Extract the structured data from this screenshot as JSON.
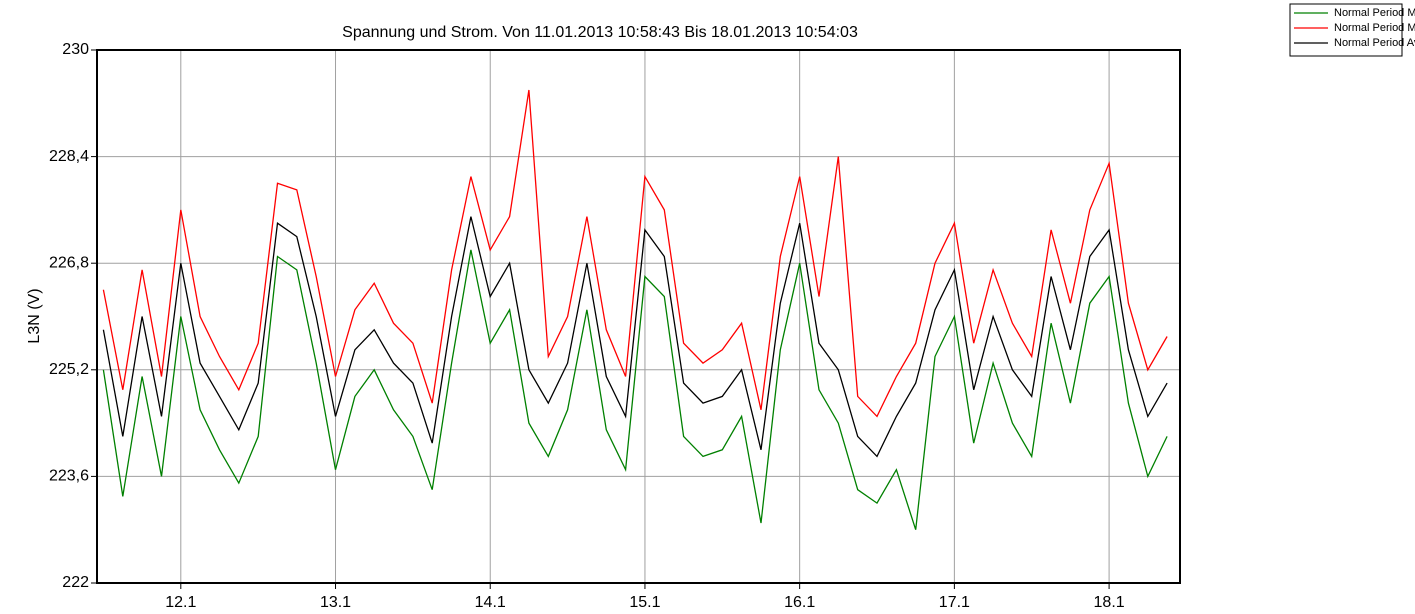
{
  "chart_data": {
    "type": "line",
    "title": "Spannung und Strom. Von 11.01.2013 10:58:43 Bis 18.01.2013 10:54:03",
    "y_label": "L3N (V)",
    "categories": [
      null,
      null,
      null,
      null,
      "12.1",
      null,
      null,
      null,
      null,
      null,
      null,
      null,
      "13.1",
      null,
      null,
      null,
      null,
      null,
      null,
      null,
      "14.1",
      null,
      null,
      null,
      null,
      null,
      null,
      null,
      "15.1",
      null,
      null,
      null,
      null,
      null,
      null,
      null,
      "16.1",
      null,
      null,
      null,
      null,
      null,
      null,
      null,
      "17.1",
      null,
      null,
      null,
      null,
      null,
      null,
      null,
      "18.1",
      null,
      null,
      null
    ],
    "series": [
      {
        "name": "Normal Period Min",
        "color": "#008000",
        "values": [
          225.2,
          223.3,
          225.1,
          223.6,
          226.0,
          224.6,
          224.0,
          223.5,
          224.2,
          226.9,
          226.7,
          225.3,
          223.7,
          224.8,
          225.2,
          224.6,
          224.2,
          223.4,
          225.3,
          227.0,
          225.6,
          226.1,
          224.4,
          223.9,
          224.6,
          226.1,
          224.3,
          223.7,
          226.6,
          226.3,
          224.2,
          223.9,
          224.0,
          224.5,
          222.9,
          225.5,
          226.8,
          224.9,
          224.4,
          223.4,
          223.2,
          223.7,
          222.8,
          225.4,
          226.0,
          224.1,
          225.3,
          224.4,
          223.9,
          225.9,
          224.7,
          226.2,
          226.6,
          224.7,
          223.6,
          224.2
        ]
      },
      {
        "name": "Normal Period Max",
        "color": "#ff0000",
        "values": [
          226.4,
          224.9,
          226.7,
          225.1,
          227.6,
          226.0,
          225.4,
          224.9,
          225.6,
          228.0,
          227.9,
          226.6,
          225.1,
          226.1,
          226.5,
          225.9,
          225.6,
          224.7,
          226.7,
          228.1,
          227.0,
          227.5,
          229.4,
          225.4,
          226.0,
          227.5,
          225.8,
          225.1,
          228.1,
          227.6,
          225.6,
          225.3,
          225.5,
          225.9,
          224.6,
          226.9,
          228.1,
          226.3,
          228.4,
          224.8,
          224.5,
          225.1,
          225.6,
          226.8,
          227.4,
          225.6,
          226.7,
          225.9,
          225.4,
          227.3,
          226.2,
          227.6,
          228.3,
          226.2,
          225.2,
          225.7
        ]
      },
      {
        "name": "Normal Period Avg",
        "color": "#000000",
        "values": [
          225.8,
          224.2,
          226.0,
          224.5,
          226.8,
          225.3,
          224.8,
          224.3,
          225.0,
          227.4,
          227.2,
          226.0,
          224.5,
          225.5,
          225.8,
          225.3,
          225.0,
          224.1,
          226.0,
          227.5,
          226.3,
          226.8,
          225.2,
          224.7,
          225.3,
          226.8,
          225.1,
          224.5,
          227.3,
          226.9,
          225.0,
          224.7,
          224.8,
          225.2,
          224.0,
          226.2,
          227.4,
          225.6,
          225.2,
          224.2,
          223.9,
          224.5,
          225.0,
          226.1,
          226.7,
          224.9,
          226.0,
          225.2,
          224.8,
          226.6,
          225.5,
          226.9,
          227.3,
          225.5,
          224.5,
          225.0
        ]
      }
    ],
    "ylim": [
      222,
      230
    ],
    "yticks": [
      222,
      {
        "value": 223.6,
        "label": "223,6"
      },
      {
        "value": 225.2,
        "label": "225,2"
      },
      {
        "value": 226.8,
        "label": "226,8"
      },
      {
        "value": 228.4,
        "label": "228,4"
      },
      230
    ],
    "grid": true,
    "legend": "top-right"
  }
}
